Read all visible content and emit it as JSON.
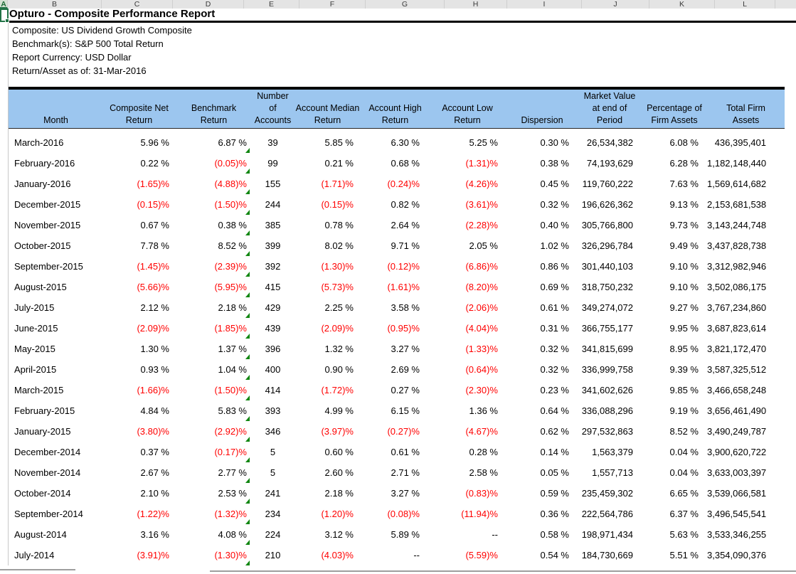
{
  "colors": {
    "header_bg": "#9CC6EF",
    "negative_value": "#FF0000",
    "indicator_green": "#128712",
    "selection_green": "#217346"
  },
  "spreadsheet": {
    "column_letters": [
      "A",
      "B",
      "C",
      "D",
      "E",
      "F",
      "G",
      "H",
      "I",
      "J",
      "K",
      "L"
    ]
  },
  "report": {
    "title": "Opturo - Composite Performance Report",
    "info_lines": [
      "Composite: US Dividend Growth Composite",
      "Benchmark(s): S&P 500 Total Return",
      "Report Currency: USD Dollar",
      "Return/Asset as of: 31-Mar-2016"
    ]
  },
  "table": {
    "headers": [
      {
        "key": "month",
        "label": "Month"
      },
      {
        "key": "composite_net_return",
        "label": "Composite Net\nReturn"
      },
      {
        "key": "benchmark_return",
        "label": "Benchmark\nReturn"
      },
      {
        "key": "number_of_accounts",
        "label": "Number of\nAccounts"
      },
      {
        "key": "account_median_return",
        "label": "Account Median\nReturn"
      },
      {
        "key": "account_high_return",
        "label": "Account High\nReturn"
      },
      {
        "key": "account_low_return",
        "label": "Account Low\nReturn"
      },
      {
        "key": "dispersion",
        "label": "Dispersion"
      },
      {
        "key": "market_value",
        "label": "Market Value\nat end of\nPeriod"
      },
      {
        "key": "pct_firm_assets",
        "label": "Percentage of\nFirm Assets"
      },
      {
        "key": "total_firm_assets",
        "label": "Total Firm\nAssets"
      }
    ],
    "rows": [
      {
        "month": "March-2016",
        "composite_net_return": "5.96 %",
        "benchmark_return": "6.87 %",
        "number_of_accounts": "39",
        "account_median_return": "5.85 %",
        "account_high_return": "6.30 %",
        "account_low_return": "5.25 %",
        "dispersion": "0.30 %",
        "market_value": "26,534,382",
        "pct_firm_assets": "6.08 %",
        "total_firm_assets": "436,395,401"
      },
      {
        "month": "February-2016",
        "composite_net_return": "0.22 %",
        "benchmark_return": "(0.05)%",
        "number_of_accounts": "99",
        "account_median_return": "0.21 %",
        "account_high_return": "0.68 %",
        "account_low_return": "(1.31)%",
        "dispersion": "0.38 %",
        "market_value": "74,193,629",
        "pct_firm_assets": "6.28 %",
        "total_firm_assets": "1,182,148,440"
      },
      {
        "month": "January-2016",
        "composite_net_return": "(1.65)%",
        "benchmark_return": "(4.88)%",
        "number_of_accounts": "155",
        "account_median_return": "(1.71)%",
        "account_high_return": "(0.24)%",
        "account_low_return": "(4.26)%",
        "dispersion": "0.45 %",
        "market_value": "119,760,222",
        "pct_firm_assets": "7.63 %",
        "total_firm_assets": "1,569,614,682"
      },
      {
        "month": "December-2015",
        "composite_net_return": "(0.15)%",
        "benchmark_return": "(1.50)%",
        "number_of_accounts": "244",
        "account_median_return": "(0.15)%",
        "account_high_return": "0.82 %",
        "account_low_return": "(3.61)%",
        "dispersion": "0.32 %",
        "market_value": "196,626,362",
        "pct_firm_assets": "9.13 %",
        "total_firm_assets": "2,153,681,538"
      },
      {
        "month": "November-2015",
        "composite_net_return": "0.67 %",
        "benchmark_return": "0.38 %",
        "number_of_accounts": "385",
        "account_median_return": "0.78 %",
        "account_high_return": "2.64 %",
        "account_low_return": "(2.28)%",
        "dispersion": "0.40 %",
        "market_value": "305,766,800",
        "pct_firm_assets": "9.73 %",
        "total_firm_assets": "3,143,244,748"
      },
      {
        "month": "October-2015",
        "composite_net_return": "7.78 %",
        "benchmark_return": "8.52 %",
        "number_of_accounts": "399",
        "account_median_return": "8.02 %",
        "account_high_return": "9.71 %",
        "account_low_return": "2.05 %",
        "dispersion": "1.02 %",
        "market_value": "326,296,784",
        "pct_firm_assets": "9.49 %",
        "total_firm_assets": "3,437,828,738"
      },
      {
        "month": "September-2015",
        "composite_net_return": "(1.45)%",
        "benchmark_return": "(2.39)%",
        "number_of_accounts": "392",
        "account_median_return": "(1.30)%",
        "account_high_return": "(0.12)%",
        "account_low_return": "(6.86)%",
        "dispersion": "0.86 %",
        "market_value": "301,440,103",
        "pct_firm_assets": "9.10 %",
        "total_firm_assets": "3,312,982,946"
      },
      {
        "month": "August-2015",
        "composite_net_return": "(5.66)%",
        "benchmark_return": "(5.95)%",
        "number_of_accounts": "415",
        "account_median_return": "(5.73)%",
        "account_high_return": "(1.61)%",
        "account_low_return": "(8.20)%",
        "dispersion": "0.69 %",
        "market_value": "318,750,232",
        "pct_firm_assets": "9.10 %",
        "total_firm_assets": "3,502,086,175"
      },
      {
        "month": "July-2015",
        "composite_net_return": "2.12 %",
        "benchmark_return": "2.18 %",
        "number_of_accounts": "429",
        "account_median_return": "2.25 %",
        "account_high_return": "3.58 %",
        "account_low_return": "(2.06)%",
        "dispersion": "0.61 %",
        "market_value": "349,274,072",
        "pct_firm_assets": "9.27 %",
        "total_firm_assets": "3,767,234,860"
      },
      {
        "month": "June-2015",
        "composite_net_return": "(2.09)%",
        "benchmark_return": "(1.85)%",
        "number_of_accounts": "439",
        "account_median_return": "(2.09)%",
        "account_high_return": "(0.95)%",
        "account_low_return": "(4.04)%",
        "dispersion": "0.31 %",
        "market_value": "366,755,177",
        "pct_firm_assets": "9.95 %",
        "total_firm_assets": "3,687,823,614"
      },
      {
        "month": "May-2015",
        "composite_net_return": "1.30 %",
        "benchmark_return": "1.37 %",
        "number_of_accounts": "396",
        "account_median_return": "1.32 %",
        "account_high_return": "3.27 %",
        "account_low_return": "(1.33)%",
        "dispersion": "0.32 %",
        "market_value": "341,815,699",
        "pct_firm_assets": "8.95 %",
        "total_firm_assets": "3,821,172,470"
      },
      {
        "month": "April-2015",
        "composite_net_return": "0.93 %",
        "benchmark_return": "1.04 %",
        "number_of_accounts": "400",
        "account_median_return": "0.90 %",
        "account_high_return": "2.69 %",
        "account_low_return": "(0.64)%",
        "dispersion": "0.32 %",
        "market_value": "336,999,758",
        "pct_firm_assets": "9.39 %",
        "total_firm_assets": "3,587,325,512"
      },
      {
        "month": "March-2015",
        "composite_net_return": "(1.66)%",
        "benchmark_return": "(1.50)%",
        "number_of_accounts": "414",
        "account_median_return": "(1.72)%",
        "account_high_return": "0.27 %",
        "account_low_return": "(2.30)%",
        "dispersion": "0.23 %",
        "market_value": "341,602,626",
        "pct_firm_assets": "9.85 %",
        "total_firm_assets": "3,466,658,248"
      },
      {
        "month": "February-2015",
        "composite_net_return": "4.84 %",
        "benchmark_return": "5.83 %",
        "number_of_accounts": "393",
        "account_median_return": "4.99 %",
        "account_high_return": "6.15 %",
        "account_low_return": "1.36 %",
        "dispersion": "0.64 %",
        "market_value": "336,088,296",
        "pct_firm_assets": "9.19 %",
        "total_firm_assets": "3,656,461,490"
      },
      {
        "month": "January-2015",
        "composite_net_return": "(3.80)%",
        "benchmark_return": "(2.92)%",
        "number_of_accounts": "346",
        "account_median_return": "(3.97)%",
        "account_high_return": "(0.27)%",
        "account_low_return": "(4.67)%",
        "dispersion": "0.62 %",
        "market_value": "297,532,863",
        "pct_firm_assets": "8.52 %",
        "total_firm_assets": "3,490,249,787"
      },
      {
        "month": "December-2014",
        "composite_net_return": "0.37 %",
        "benchmark_return": "(0.17)%",
        "number_of_accounts": "5",
        "account_median_return": "0.60 %",
        "account_high_return": "0.61 %",
        "account_low_return": "0.28 %",
        "dispersion": "0.14 %",
        "market_value": "1,563,379",
        "pct_firm_assets": "0.04 %",
        "total_firm_assets": "3,900,620,722"
      },
      {
        "month": "November-2014",
        "composite_net_return": "2.67 %",
        "benchmark_return": "2.77 %",
        "number_of_accounts": "5",
        "account_median_return": "2.60 %",
        "account_high_return": "2.71 %",
        "account_low_return": "2.58 %",
        "dispersion": "0.05 %",
        "market_value": "1,557,713",
        "pct_firm_assets": "0.04 %",
        "total_firm_assets": "3,633,003,397"
      },
      {
        "month": "October-2014",
        "composite_net_return": "2.10 %",
        "benchmark_return": "2.53 %",
        "number_of_accounts": "241",
        "account_median_return": "2.18 %",
        "account_high_return": "3.27 %",
        "account_low_return": "(0.83)%",
        "dispersion": "0.59 %",
        "market_value": "235,459,302",
        "pct_firm_assets": "6.65 %",
        "total_firm_assets": "3,539,066,581"
      },
      {
        "month": "September-2014",
        "composite_net_return": "(1.22)%",
        "benchmark_return": "(1.32)%",
        "number_of_accounts": "234",
        "account_median_return": "(1.20)%",
        "account_high_return": "(0.08)%",
        "account_low_return": "(11.94)%",
        "dispersion": "0.36 %",
        "market_value": "222,564,786",
        "pct_firm_assets": "6.37 %",
        "total_firm_assets": "3,496,545,541"
      },
      {
        "month": "August-2014",
        "composite_net_return": "3.16 %",
        "benchmark_return": "4.08 %",
        "number_of_accounts": "224",
        "account_median_return": "3.12 %",
        "account_high_return": "5.89 %",
        "account_low_return": "--",
        "dispersion": "0.58 %",
        "market_value": "198,971,434",
        "pct_firm_assets": "5.63 %",
        "total_firm_assets": "3,533,346,255"
      },
      {
        "month": "July-2014",
        "composite_net_return": "(3.91)%",
        "benchmark_return": "(1.30)%",
        "number_of_accounts": "210",
        "account_median_return": "(4.03)%",
        "account_high_return": "--",
        "account_low_return": "(5.59)%",
        "dispersion": "0.54 %",
        "market_value": "184,730,669",
        "pct_firm_assets": "5.51 %",
        "total_firm_assets": "3,354,090,376"
      }
    ]
  }
}
